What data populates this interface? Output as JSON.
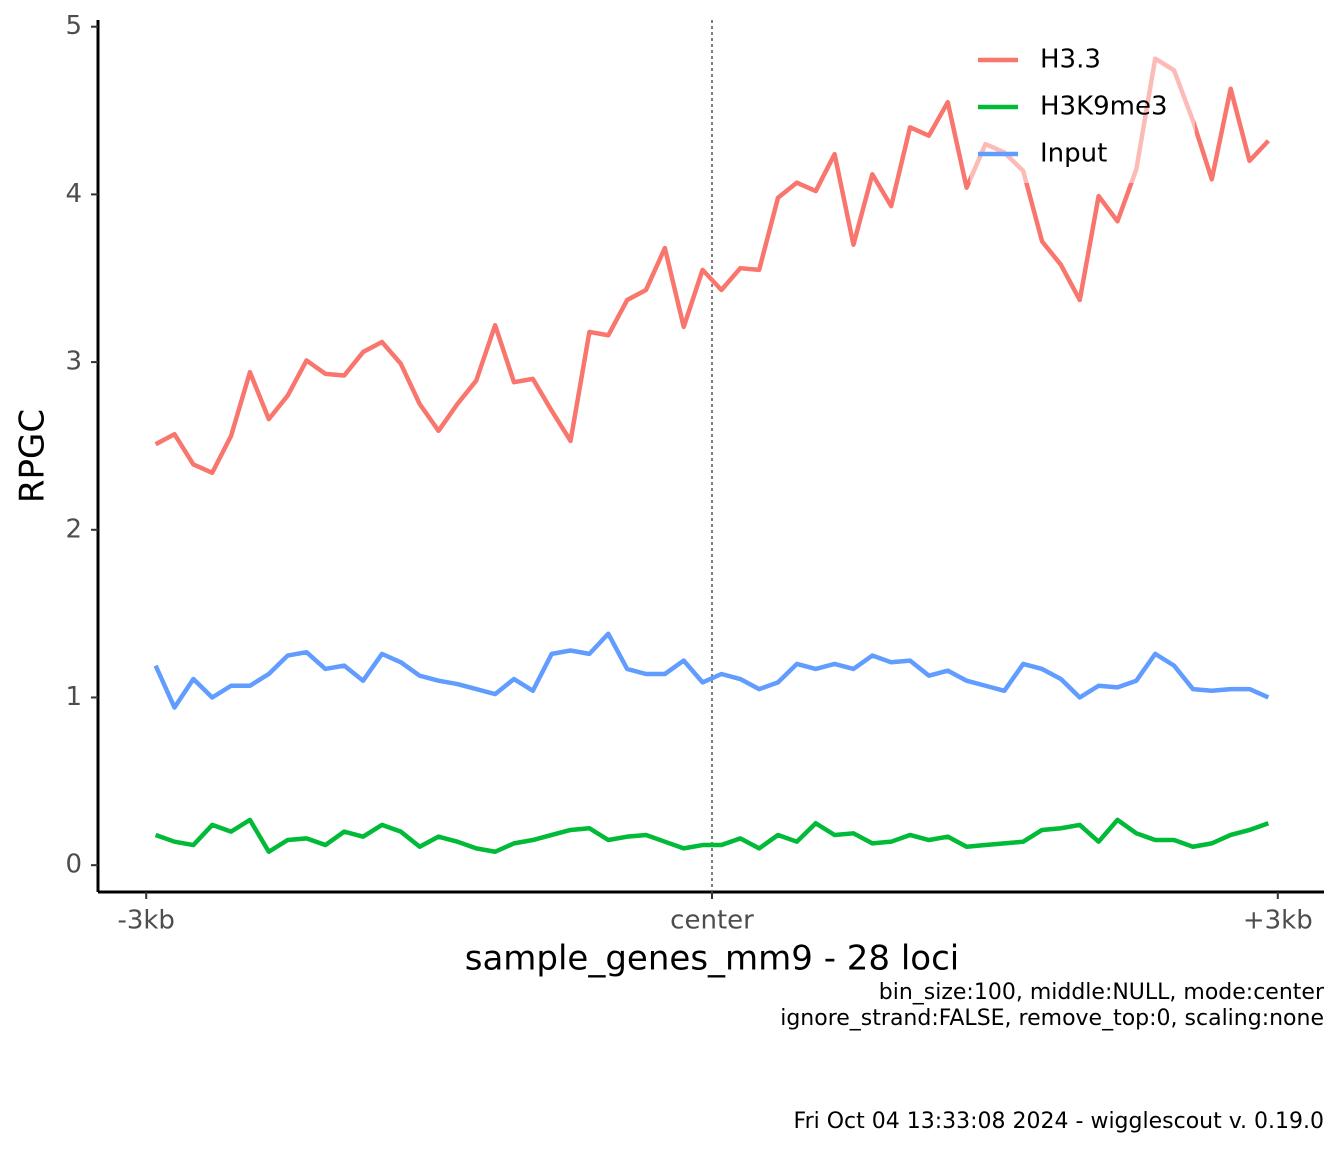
{
  "chart_data": {
    "type": "line",
    "x_label": "sample_genes_mm9 - 28 loci",
    "y_label": "RPGC",
    "caption": [
      "bin_size:100, middle:NULL, mode:center",
      "ignore_strand:FALSE, remove_top:0, scaling:none"
    ],
    "footer": "Fri Oct 04 13:33:08 2024 - wigglescout v. 0.19.0",
    "x": [
      -2950,
      -2850,
      -2750,
      -2650,
      -2550,
      -2450,
      -2350,
      -2250,
      -2150,
      -2050,
      -1950,
      -1850,
      -1750,
      -1650,
      -1550,
      -1450,
      -1350,
      -1250,
      -1150,
      -1050,
      -950,
      -850,
      -750,
      -650,
      -550,
      -450,
      -350,
      -250,
      -150,
      -50,
      50,
      150,
      250,
      350,
      450,
      550,
      650,
      750,
      850,
      950,
      1050,
      1150,
      1250,
      1350,
      1450,
      1550,
      1650,
      1750,
      1850,
      1950,
      2050,
      2150,
      2250,
      2350,
      2450,
      2550,
      2650,
      2750,
      2850,
      2950
    ],
    "series": [
      {
        "name": "H3.3",
        "color": "#F8766D",
        "values": [
          2.51,
          2.57,
          2.39,
          2.34,
          2.56,
          2.94,
          2.66,
          2.8,
          3.01,
          2.93,
          2.92,
          3.06,
          3.12,
          2.99,
          2.75,
          2.59,
          2.75,
          2.89,
          3.22,
          2.88,
          2.9,
          2.71,
          2.53,
          3.18,
          3.16,
          3.37,
          3.43,
          3.68,
          3.21,
          3.55,
          3.43,
          3.56,
          3.55,
          3.98,
          4.07,
          4.02,
          4.24,
          3.7,
          4.12,
          3.93,
          4.4,
          4.35,
          4.55,
          4.04,
          4.3,
          4.25,
          4.14,
          3.72,
          3.58,
          3.37,
          3.99,
          3.84,
          4.15,
          4.81,
          4.74,
          4.44,
          4.09,
          4.63,
          4.2,
          4.32
        ]
      },
      {
        "name": "H3K9me3",
        "color": "#00BA38",
        "values": [
          0.18,
          0.14,
          0.12,
          0.24,
          0.2,
          0.27,
          0.08,
          0.15,
          0.16,
          0.12,
          0.2,
          0.17,
          0.24,
          0.2,
          0.11,
          0.17,
          0.14,
          0.1,
          0.08,
          0.13,
          0.15,
          0.18,
          0.21,
          0.22,
          0.15,
          0.17,
          0.18,
          0.14,
          0.1,
          0.12,
          0.12,
          0.16,
          0.1,
          0.18,
          0.14,
          0.25,
          0.18,
          0.19,
          0.13,
          0.14,
          0.18,
          0.15,
          0.17,
          0.11,
          0.12,
          0.13,
          0.14,
          0.21,
          0.22,
          0.24,
          0.14,
          0.27,
          0.19,
          0.15,
          0.15,
          0.11,
          0.13,
          0.18,
          0.21,
          0.25
        ]
      },
      {
        "name": "Input",
        "color": "#619CFF",
        "values": [
          1.19,
          0.94,
          1.11,
          1.0,
          1.07,
          1.07,
          1.14,
          1.25,
          1.27,
          1.17,
          1.19,
          1.1,
          1.26,
          1.21,
          1.13,
          1.1,
          1.08,
          1.05,
          1.02,
          1.11,
          1.04,
          1.26,
          1.28,
          1.26,
          1.38,
          1.17,
          1.14,
          1.14,
          1.22,
          1.09,
          1.14,
          1.11,
          1.05,
          1.09,
          1.2,
          1.17,
          1.2,
          1.17,
          1.25,
          1.21,
          1.22,
          1.13,
          1.16,
          1.1,
          1.07,
          1.04,
          1.2,
          1.17,
          1.11,
          1.0,
          1.07,
          1.06,
          1.1,
          1.26,
          1.19,
          1.05,
          1.04,
          1.05,
          1.05,
          1.0
        ]
      }
    ],
    "xlim": [
      -3245,
      3245
    ],
    "xticks": [
      {
        "value": -3000,
        "label": "-3kb"
      },
      {
        "value": 0,
        "label": "center"
      },
      {
        "value": 3000,
        "label": "+3kb"
      }
    ],
    "ylim": [
      -0.16,
      5.04
    ],
    "yticks": [
      0,
      1,
      2,
      3,
      4,
      5
    ],
    "vline": 0,
    "grid": false,
    "legend": "top-right"
  }
}
